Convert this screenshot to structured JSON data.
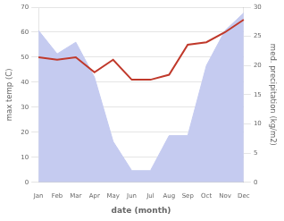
{
  "chart_data": {
    "type": "line",
    "xlabel": "date (month)",
    "ylabel": "max temp (C)",
    "y2label": "med. precipitation (kg/m2)",
    "categories": [
      "Jan",
      "Feb",
      "Mar",
      "Apr",
      "May",
      "Jun",
      "Jul",
      "Aug",
      "Sep",
      "Oct",
      "Nov",
      "Dec"
    ],
    "series": [
      {
        "type": "area",
        "axis": "y2",
        "color": "#c5cbf0",
        "values": [
          26,
          22,
          24,
          18,
          7,
          2,
          2,
          8,
          8,
          20,
          26,
          29
        ]
      },
      {
        "type": "line",
        "color": "#c0392b",
        "values": [
          50,
          49,
          50,
          44,
          49,
          41,
          41,
          43,
          55,
          56,
          60,
          65
        ]
      }
    ],
    "ylim": [
      0,
      70
    ],
    "yticks": [
      0,
      10,
      20,
      30,
      40,
      50,
      60,
      70
    ],
    "y2lim": [
      0,
      30
    ],
    "y2ticks": [
      0,
      5,
      10,
      15,
      20,
      25,
      30
    ],
    "grid": "y"
  }
}
